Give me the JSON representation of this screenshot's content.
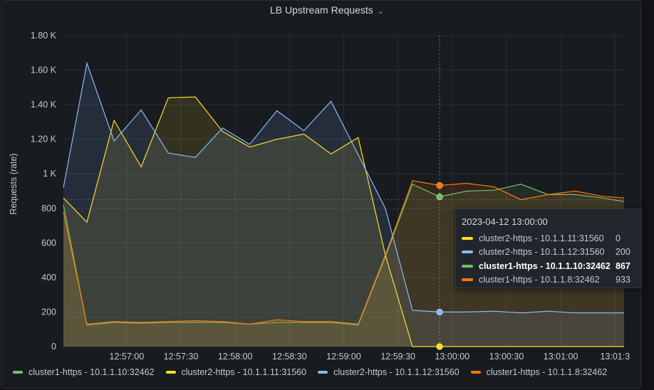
{
  "panel": {
    "title": "LB Upstream Requests",
    "menu_icon": "chevron-down-icon"
  },
  "colors": {
    "green": "#73bf69",
    "yellow": "#fade2a",
    "blue": "#8ab8ff",
    "orange": "#ff780a"
  },
  "chart_data": {
    "type": "area",
    "title": "LB Upstream Requests",
    "ylabel": "Requests (rate)",
    "xlabel": "",
    "ylim": [
      0,
      1800
    ],
    "xlim": [
      "12:56:25",
      "13:01:35"
    ],
    "y_ticks": [
      "0",
      "200",
      "400",
      "600",
      "800",
      "1 K",
      "1.20 K",
      "1.40 K",
      "1.60 K",
      "1.80 K"
    ],
    "x_ticks": [
      "12:57:00",
      "12:57:30",
      "12:58:00",
      "12:58:30",
      "12:59:00",
      "12:59:30",
      "13:00:00",
      "13:00:30",
      "13:01:00",
      "13:01:3"
    ],
    "grid": true,
    "legend_position": "bottom",
    "x": [
      "12:56:25",
      "12:56:38",
      "12:56:53",
      "12:57:08",
      "12:57:23",
      "12:57:38",
      "12:57:53",
      "12:58:08",
      "12:58:23",
      "12:58:38",
      "12:58:53",
      "12:59:08",
      "12:59:23",
      "12:59:38",
      "12:59:53",
      "13:00:08",
      "13:00:23",
      "13:00:38",
      "13:00:53",
      "13:01:08",
      "13:01:23",
      "13:01:35"
    ],
    "series": [
      {
        "name": "cluster1-https - 10.1.1.10:32462",
        "color": "#73bf69",
        "values": [
          820,
          125,
          140,
          135,
          140,
          140,
          140,
          130,
          140,
          140,
          140,
          125,
          520,
          940,
          867,
          900,
          905,
          940,
          880,
          880,
          860,
          840
        ]
      },
      {
        "name": "cluster2-https - 10.1.1.11:31560",
        "color": "#fade2a",
        "values": [
          860,
          720,
          1310,
          1040,
          1440,
          1445,
          1245,
          1155,
          1200,
          1230,
          1115,
          1210,
          530,
          0,
          0,
          0,
          0,
          0,
          0,
          0,
          0,
          0
        ]
      },
      {
        "name": "cluster2-https - 10.1.1.12:31560",
        "color": "#8ab8ff",
        "values": [
          920,
          1640,
          1190,
          1370,
          1120,
          1095,
          1265,
          1170,
          1365,
          1250,
          1420,
          1110,
          800,
          210,
          200,
          200,
          205,
          195,
          205,
          195,
          195,
          195
        ]
      },
      {
        "name": "cluster1-https - 10.1.1.8:32462",
        "color": "#ff780a",
        "values": [
          780,
          130,
          145,
          140,
          145,
          150,
          145,
          130,
          155,
          145,
          145,
          130,
          530,
          960,
          933,
          945,
          925,
          850,
          880,
          900,
          870,
          860
        ]
      }
    ],
    "hover_index": 14,
    "crosshair_value": 850
  },
  "tooltip": {
    "time": "2023-04-12 13:00:00",
    "rows": [
      {
        "name": "cluster2-https - 10.1.1.11:31560",
        "value": "0",
        "color": "#fade2a"
      },
      {
        "name": "cluster2-https - 10.1.1.12:31560",
        "value": "200",
        "color": "#8ab8ff"
      },
      {
        "name": "cluster1-https - 10.1.1.10:32462",
        "value": "867",
        "color": "#73bf69"
      },
      {
        "name": "cluster1-https - 10.1.1.8:32462",
        "value": "933",
        "color": "#ff780a"
      }
    ]
  },
  "legend": [
    {
      "name": "cluster1-https - 10.1.1.10:32462",
      "color": "#73bf69"
    },
    {
      "name": "cluster2-https - 10.1.1.11:31560",
      "color": "#fade2a"
    },
    {
      "name": "cluster2-https - 10.1.1.12:31560",
      "color": "#8ab8ff"
    },
    {
      "name": "cluster1-https - 10.1.1.8:32462",
      "color": "#ff780a"
    }
  ]
}
